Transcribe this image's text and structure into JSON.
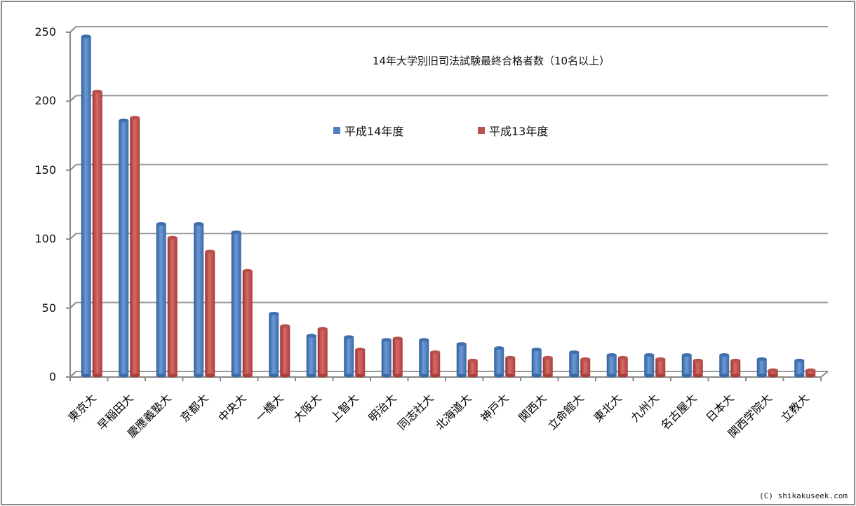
{
  "chart_data": {
    "type": "bar",
    "title": "14年大学別旧司法試験最終合格者数（10名以上）",
    "xlabel": "",
    "ylabel": "",
    "ylim": [
      0,
      250
    ],
    "yticks": [
      0,
      50,
      100,
      150,
      200,
      250
    ],
    "grid": true,
    "legend_position": "inside-top",
    "style": "3d-cylinder",
    "categories": [
      "東京大",
      "早稲田大",
      "慶應義塾大",
      "京都大",
      "中央大",
      "一橋大",
      "大阪大",
      "上智大",
      "明治大",
      "同志社大",
      "北海道大",
      "神戸大",
      "関西大",
      "立命館大",
      "東北大",
      "九州大",
      "名古屋大",
      "日本大",
      "関西学院大",
      "立教大"
    ],
    "series": [
      {
        "name": "平成14年度",
        "color": "#4F81BD",
        "values": [
          246,
          185,
          110,
          110,
          104,
          45,
          29,
          28,
          26,
          26,
          23,
          20,
          19,
          17,
          15,
          15,
          15,
          15,
          12,
          11
        ]
      },
      {
        "name": "平成13年度",
        "color": "#C0504D",
        "values": [
          206,
          187,
          100,
          90,
          76,
          36,
          34,
          19,
          27,
          17,
          11,
          13,
          13,
          12,
          13,
          12,
          11,
          11,
          4,
          4
        ]
      }
    ]
  },
  "legend": {
    "series1": "平成14年度",
    "series2": "平成13年度"
  },
  "copyright": "(C) shikakuseek.com"
}
